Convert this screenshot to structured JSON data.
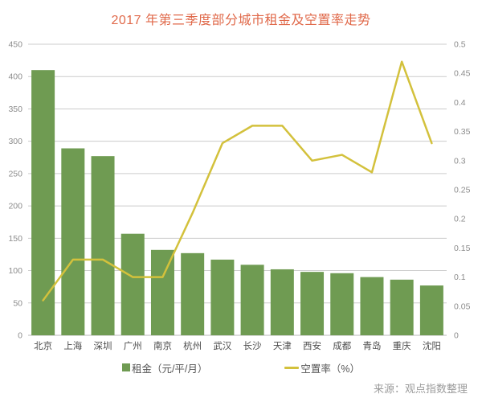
{
  "title": "2017 年第三季度部分城市租金及空置率走势",
  "source": "来源：观点指数整理",
  "colors": {
    "bar": "#6f9b52",
    "line": "#d3c13c",
    "title": "#e0694a",
    "grid": "#cccccc",
    "axis_line": "#b9b9b9",
    "tick_text": "#8c8c8c",
    "category_text": "#4d4d4d",
    "legend_text": "#555555",
    "source_text": "#9b9b9b"
  },
  "chart_data": {
    "type": "bar",
    "subtype": "bar-line-combo",
    "title": "2017 年第三季度部分城市租金及空置率走势",
    "categories": [
      "北京",
      "上海",
      "深圳",
      "广州",
      "南京",
      "杭州",
      "武汉",
      "长沙",
      "天津",
      "西安",
      "成都",
      "青岛",
      "重庆",
      "沈阳"
    ],
    "series": [
      {
        "name": "租金（元/平/月）",
        "type": "bar",
        "axis": "left",
        "values": [
          410,
          289,
          277,
          157,
          132,
          127,
          117,
          109,
          102,
          98,
          96,
          90,
          86,
          77
        ]
      },
      {
        "name": "空置率（%）",
        "type": "line",
        "axis": "right",
        "values": [
          0.06,
          0.13,
          0.13,
          0.1,
          0.1,
          0.21,
          0.33,
          0.36,
          0.36,
          0.3,
          0.31,
          0.28,
          0.47,
          0.33
        ]
      }
    ],
    "left_axis": {
      "min": 0,
      "max": 450,
      "step": 50
    },
    "right_axis": {
      "min": 0,
      "max": 0.5,
      "step": 0.05
    },
    "grid": true,
    "legend_position": "bottom",
    "xlabel": "",
    "ylabel_left": "租金（元/平/月）",
    "ylabel_right": "空置率（%）"
  }
}
